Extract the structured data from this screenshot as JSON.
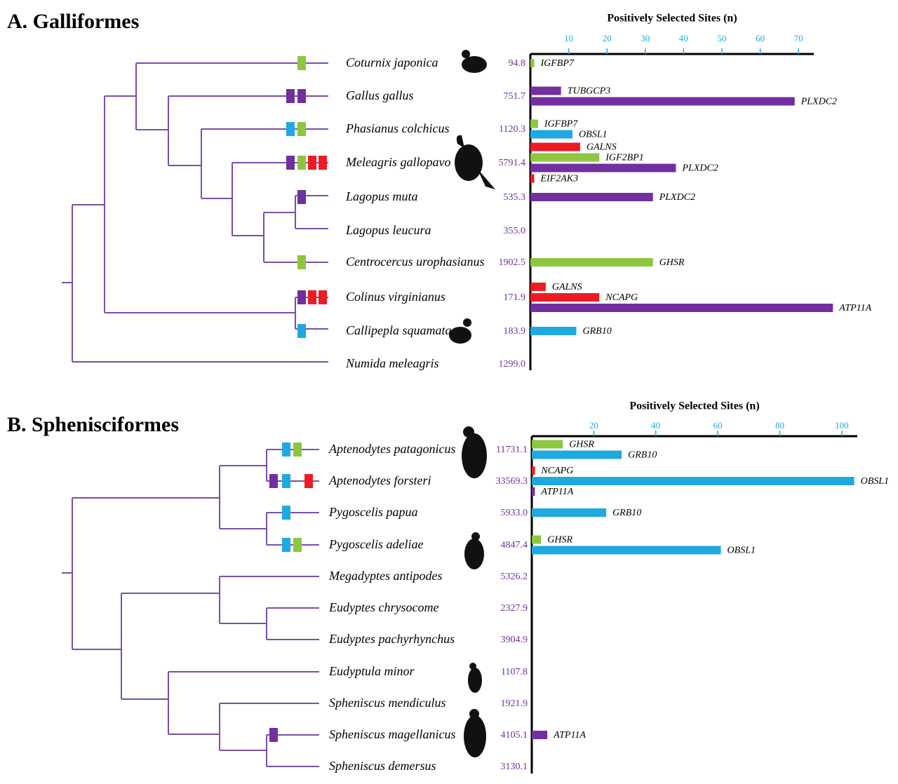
{
  "chart_data": [
    {
      "type": "bar",
      "title": "A. Galliformes",
      "x_label": "Positively Selected Sites (n)",
      "xlim": [
        0,
        74
      ],
      "xticks": [
        10,
        20,
        30,
        40,
        50,
        60,
        70
      ],
      "categories": [
        "Coturnix japonica",
        "Gallus gallus",
        "Phasianus colchicus",
        "Meleagris gallopavo",
        "Lagopus muta",
        "Lagopus leucura",
        "Centrocercus urophasianus",
        "Colinus virginianus",
        "Callipepla squamata",
        "Numida meleagris"
      ],
      "branch_values": [
        "94.8",
        "751.7",
        "1120.3",
        "5791.4",
        "535.3",
        "355.0",
        "1902.5",
        "171.9",
        "183.9",
        "1299.0"
      ],
      "markers": [
        [
          "#8dc63f"
        ],
        [
          "#7030a0",
          "#7030a0"
        ],
        [
          "#1fa9e1",
          "#8dc63f"
        ],
        [
          "#7030a0",
          "#8dc63f",
          "#ed1c24",
          "#ed1c24"
        ],
        [
          "#7030a0"
        ],
        [],
        [
          "#8dc63f"
        ],
        [
          "#7030a0",
          "#ed1c24",
          "#ed1c24"
        ],
        [
          "#1fa9e1"
        ],
        []
      ],
      "bars": [
        [
          {
            "name": "IGFBP7",
            "color": "#8dc63f",
            "value": 1
          }
        ],
        [
          {
            "name": "TUBGCP3",
            "color": "#7030a0",
            "value": 8
          },
          {
            "name": "PLXDC2",
            "color": "#7030a0",
            "value": 69
          }
        ],
        [
          {
            "name": "IGFBP7",
            "color": "#8dc63f",
            "value": 2
          },
          {
            "name": "OBSL1",
            "color": "#1fa9e1",
            "value": 11
          }
        ],
        [
          {
            "name": "GALNS",
            "color": "#ed1c24",
            "value": 13
          },
          {
            "name": "IGF2BP1",
            "color": "#8dc63f",
            "value": 18
          },
          {
            "name": "PLXDC2",
            "color": "#7030a0",
            "value": 38
          },
          {
            "name": "EIF2AK3",
            "color": "#ed1c24",
            "value": 1
          }
        ],
        [
          {
            "name": "PLXDC2",
            "color": "#7030a0",
            "value": 32
          }
        ],
        [],
        [
          {
            "name": "GHSR",
            "color": "#8dc63f",
            "value": 32
          }
        ],
        [
          {
            "name": "GALNS",
            "color": "#ed1c24",
            "value": 4
          },
          {
            "name": "NCAPG",
            "color": "#ed1c24",
            "value": 18
          },
          {
            "name": "ATP11A",
            "color": "#7030a0",
            "value": 79
          }
        ],
        [
          {
            "name": "GRB10",
            "color": "#1fa9e1",
            "value": 12
          }
        ],
        []
      ]
    },
    {
      "type": "bar",
      "title": "B. Sphenisciformes",
      "x_label": "Positively Selected Sites (n)",
      "xlim": [
        0,
        105
      ],
      "xticks": [
        20,
        40,
        60,
        80,
        100
      ],
      "categories": [
        "Aptenodytes patagonicus",
        "Aptenodytes forsteri",
        "Pygoscelis papua",
        "Pygoscelis adeliae",
        "Megadyptes antipodes",
        "Eudyptes chrysocome",
        "Eudyptes pachyrhynchus",
        "Eudyptula minor",
        "Spheniscus mendiculus",
        "Spheniscus magellanicus",
        "Spheniscus demersus"
      ],
      "branch_values": [
        "11731.1",
        "33569.3",
        "5933.0",
        "4847.4",
        "5326.2",
        "2327.9",
        "3904.9",
        "1107.8",
        "1921.9",
        "4105.1",
        "3130.1"
      ],
      "markers": [
        [
          "#1fa9e1",
          "#8dc63f"
        ],
        [
          "#7030a0",
          "#1fa9e1",
          "#ed1c24"
        ],
        [
          "#1fa9e1"
        ],
        [
          "#1fa9e1",
          "#8dc63f"
        ],
        [],
        [],
        [],
        [],
        [],
        [
          "#7030a0"
        ],
        []
      ],
      "bars": [
        [
          {
            "name": "GHSR",
            "color": "#8dc63f",
            "value": 10
          },
          {
            "name": "GRB10",
            "color": "#1fa9e1",
            "value": 29
          }
        ],
        [
          {
            "name": "NCAPG",
            "color": "#ed1c24",
            "value": 1
          },
          {
            "name": "OBSL1",
            "color": "#1fa9e1",
            "value": 104
          },
          {
            "name": "ATP11A",
            "color": "#7030a0",
            "value": 1
          }
        ],
        [
          {
            "name": "GRB10",
            "color": "#1fa9e1",
            "value": 24
          }
        ],
        [
          {
            "name": "GHSR",
            "color": "#8dc63f",
            "value": 3
          },
          {
            "name": "OBSL1",
            "color": "#1fa9e1",
            "value": 61
          }
        ],
        [],
        [],
        [],
        [],
        [],
        [
          {
            "name": "ATP11A",
            "color": "#7030a0",
            "value": 5
          }
        ],
        []
      ]
    }
  ]
}
